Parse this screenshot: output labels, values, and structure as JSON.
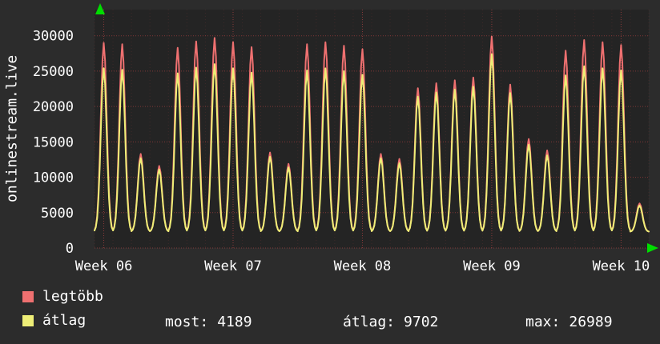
{
  "chart_data": {
    "type": "line",
    "title": "",
    "ylabel": "onlinestream.live",
    "xlabel": "",
    "ylim": [
      0,
      33700
    ],
    "yticks": [
      0,
      5000,
      10000,
      15000,
      20000,
      25000,
      30000
    ],
    "x_labels": [
      "Week 06",
      "Week 07",
      "Week 08",
      "Week 09",
      "Week 10"
    ],
    "days_per_label": 7,
    "baseline": 2300,
    "grid": true,
    "legend_position": "bottom",
    "plot_bg": "#242424",
    "grid_major_color": "#f04f4f",
    "grid_minor_color": "#b04040",
    "arrow_color": "#00dd00",
    "series": [
      {
        "name": "legtöbb",
        "key": "legtobb",
        "color": "#ee7070",
        "day_peaks": [
          29000,
          28800,
          13300,
          11600,
          28300,
          29200,
          29700,
          29100,
          28400,
          13500,
          11900,
          28800,
          29100,
          28600,
          28100,
          13300,
          12600,
          22600,
          23300,
          23700,
          24100,
          29900,
          23100,
          15400,
          13800,
          27900,
          29400,
          29100,
          28700,
          6300
        ]
      },
      {
        "name": "átlag",
        "key": "atlag",
        "color": "#eeee77",
        "day_peaks": [
          25400,
          25200,
          12700,
          11100,
          24700,
          25500,
          26000,
          25400,
          24800,
          12900,
          11400,
          25100,
          25400,
          25000,
          24500,
          12700,
          12000,
          21400,
          22000,
          22400,
          22800,
          27400,
          21900,
          14600,
          13100,
          24400,
          25700,
          25400,
          25100,
          6000
        ]
      }
    ]
  },
  "stats": [
    {
      "label": "most:",
      "value": "4189"
    },
    {
      "label": "átlag:",
      "value": "9702"
    },
    {
      "label": "max:",
      "value": "26989"
    }
  ]
}
